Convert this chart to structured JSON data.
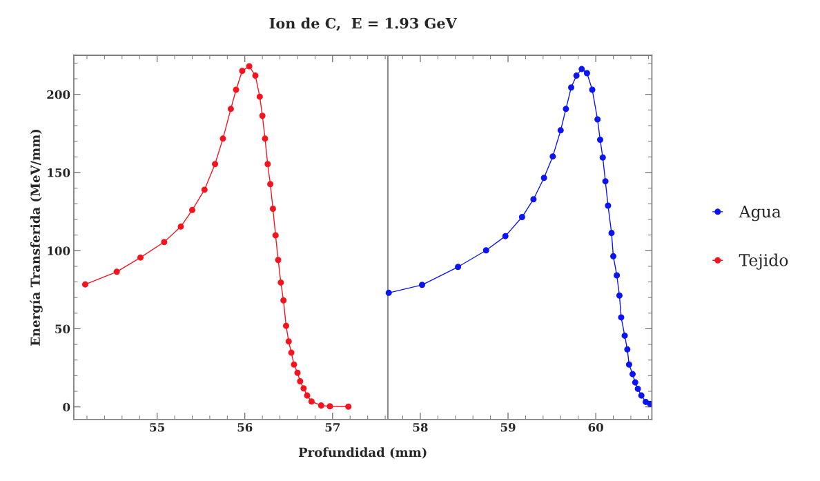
{
  "chart_data": {
    "type": "line",
    "title": "Ion de C,  E = 1.93 GeV",
    "xlabel": "Profundidad (mm)",
    "ylabel": "Energía Transferida (MeV/mm)",
    "xlim": [
      54.05,
      60.64
    ],
    "ylim": [
      -8,
      225
    ],
    "xticks": [
      55,
      56,
      57,
      58,
      59,
      60
    ],
    "yticks": [
      0,
      50,
      100,
      150,
      200
    ],
    "marker": "circle",
    "line_style": "solid",
    "legend": "right",
    "grid": false,
    "ref_lines": [
      {
        "axis": "x",
        "value": 57.63,
        "color": "#888888"
      }
    ],
    "series": [
      {
        "name": "Agua",
        "color": "#0a14f5",
        "x": [
          57.64,
          58.02,
          58.43,
          58.75,
          58.97,
          59.16,
          59.29,
          59.41,
          59.51,
          59.6,
          59.66,
          59.72,
          59.78,
          59.84,
          59.9,
          59.96,
          60.02,
          60.05,
          60.08,
          60.11,
          60.14,
          60.18,
          60.2,
          60.24,
          60.27,
          60.29,
          60.33,
          60.36,
          60.38,
          60.42,
          60.45,
          60.48,
          60.52,
          60.57,
          60.62
        ],
        "values": [
          73,
          78.1,
          89.6,
          100.2,
          109.3,
          121.5,
          132.9,
          146.6,
          160.3,
          177,
          190.7,
          204.4,
          212,
          216.2,
          213.6,
          203,
          184,
          171,
          159.6,
          144.4,
          128.8,
          111.3,
          96.4,
          84.2,
          71.3,
          57.3,
          45.6,
          36.8,
          27.1,
          21,
          15.7,
          11.6,
          7.3,
          3.2,
          2
        ]
      },
      {
        "name": "Tejido",
        "color": "#f5141e",
        "x": [
          54.18,
          54.54,
          54.81,
          55.08,
          55.27,
          55.4,
          55.54,
          55.66,
          55.75,
          55.84,
          55.9,
          55.97,
          56.05,
          56.12,
          56.17,
          56.2,
          56.23,
          56.26,
          56.29,
          56.32,
          56.35,
          56.38,
          56.41,
          56.44,
          56.47,
          56.5,
          56.53,
          56.56,
          56.6,
          56.63,
          56.67,
          56.71,
          56.76,
          56.87,
          56.97,
          57.18
        ],
        "values": [
          78.4,
          86.5,
          95.6,
          105.5,
          115.4,
          126,
          139,
          155.4,
          171.7,
          190.7,
          203,
          215,
          218,
          212,
          198.5,
          186.3,
          171.7,
          155.4,
          142.6,
          126.8,
          109.8,
          94,
          79.6,
          68.2,
          51.9,
          41.9,
          34.7,
          27.1,
          21.8,
          16.4,
          11.9,
          7.3,
          3.5,
          0.9,
          0.4,
          0.2
        ]
      }
    ]
  }
}
